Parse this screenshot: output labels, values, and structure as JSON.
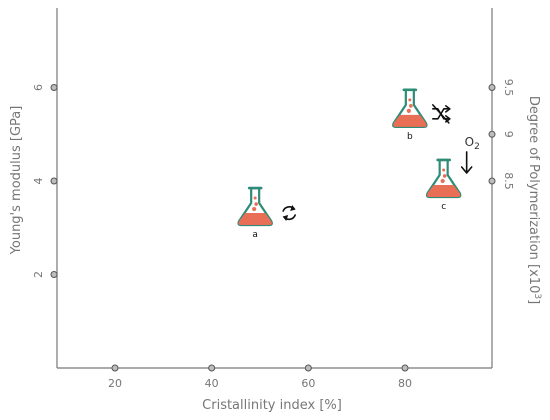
{
  "chart_data": {
    "type": "scatter",
    "xlabel": "Cristallinity index [%]",
    "ylabel": "Young's modulus [GPa]",
    "y2label": "Degree of Polymerization [x10",
    "y2label_sup": "3",
    "y2label_end": "]",
    "xlim": [
      8,
      98
    ],
    "ylim": [
      0,
      7.7
    ],
    "y2lim": [
      6.5,
      10.35
    ],
    "x_ticks": [
      20,
      40,
      60,
      80
    ],
    "x_tick_labels": [
      "20",
      "40",
      "60",
      "80"
    ],
    "y_ticks": [
      2,
      4,
      6
    ],
    "y_tick_labels": [
      "2",
      "4",
      "6"
    ],
    "y2_ticks": [
      8.5,
      9,
      9.5
    ],
    "y2_tick_labels": [
      "8.5",
      "9",
      "9.5"
    ],
    "grid": false,
    "points": [
      {
        "label": "a",
        "x": 49,
        "y": 3.4,
        "symbol": "cycle"
      },
      {
        "label": "b",
        "x": 81,
        "y": 5.5,
        "symbol": "no-shuffle"
      },
      {
        "label": "c",
        "x": 88,
        "y": 4.0,
        "symbol": "oxygen",
        "symbol_text": "O",
        "symbol_sub": "2"
      }
    ]
  }
}
